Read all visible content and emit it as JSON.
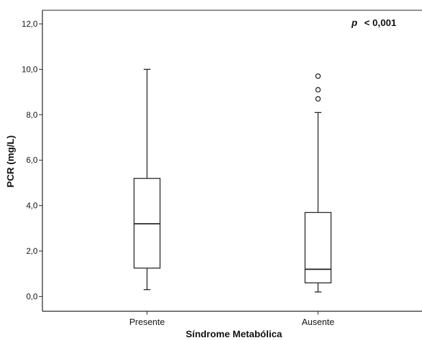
{
  "chart_data": {
    "type": "boxplot",
    "xlabel": "Síndrome Metabólica",
    "ylabel": "PCR (mg/L)",
    "ylim": [
      -0.65,
      12.6
    ],
    "yticks": [
      "0,0",
      "2,0",
      "4,0",
      "6,0",
      "8,0",
      "10,0",
      "12,0"
    ],
    "yticks_values": [
      0,
      2,
      4,
      6,
      8,
      10,
      12
    ],
    "categories": [
      "Presente",
      "Ausente"
    ],
    "boxes": [
      {
        "category": "Presente",
        "whisker_low": 0.3,
        "q1": 1.25,
        "median": 3.2,
        "q3": 5.2,
        "whisker_high": 10.0,
        "outliers": []
      },
      {
        "category": "Ausente",
        "whisker_low": 0.2,
        "q1": 0.6,
        "median": 1.2,
        "q3": 3.7,
        "whisker_high": 8.1,
        "outliers": [
          8.7,
          9.1,
          9.7
        ]
      }
    ],
    "annotation": {
      "symbol": "p",
      "text": "< 0,001"
    },
    "grid": false
  }
}
